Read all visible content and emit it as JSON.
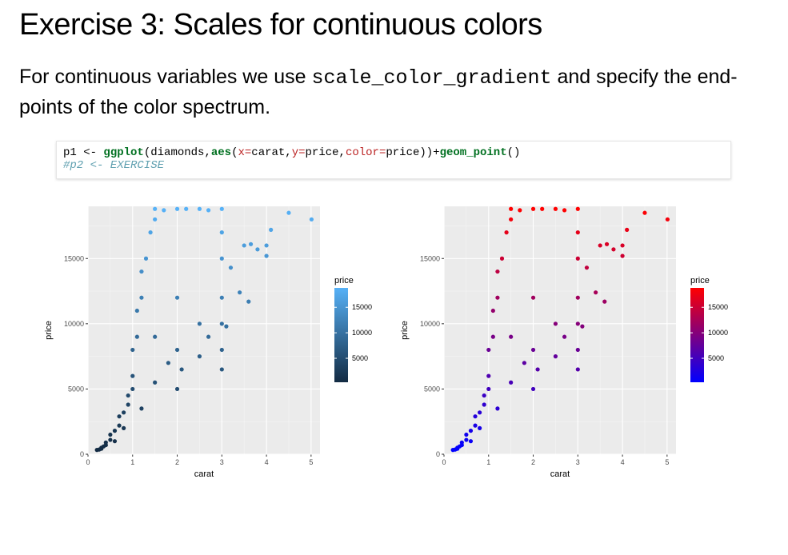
{
  "slide": {
    "title": "Exercise 3: Scales for continuous colors",
    "body_before": "For continuous variables we use ",
    "body_code": "scale_color_gradient",
    "body_after": " and specify the end-points of the color spectrum."
  },
  "code": {
    "line1": {
      "p1": "p1 <- ",
      "fn_ggplot": "ggplot",
      "open1": "(diamonds,",
      "fn_aes": "aes",
      "open2": "(",
      "arg_x": "x=",
      "val_x": "carat,",
      "arg_y": "y=",
      "val_y": "price,",
      "arg_color": "color=",
      "val_color": "price))+",
      "fn_geom": "geom_point",
      "close": "()"
    },
    "line2": "#p2 <- EXERCISE"
  },
  "chart_data": [
    {
      "type": "scatter",
      "xlabel": "carat",
      "ylabel": "price",
      "xlim": [
        0,
        5.2
      ],
      "ylim": [
        0,
        19000
      ],
      "xticks": [
        "0",
        "1",
        "2",
        "3",
        "4",
        "5"
      ],
      "yticks": [
        "0",
        "5000",
        "10000",
        "15000"
      ],
      "grid": true,
      "legend": {
        "title": "price",
        "labels": [
          "15000",
          "10000",
          "5000"
        ],
        "position": "right"
      },
      "color_low": "#132B43",
      "color_high": "#56B1F7",
      "panel_bg": "#EBEBEB",
      "points": [
        [
          0.2,
          330
        ],
        [
          0.25,
          360
        ],
        [
          0.3,
          420
        ],
        [
          0.3,
          500
        ],
        [
          0.35,
          600
        ],
        [
          0.4,
          700
        ],
        [
          0.4,
          900
        ],
        [
          0.5,
          1100
        ],
        [
          0.5,
          1500
        ],
        [
          0.6,
          1800
        ],
        [
          0.7,
          2200
        ],
        [
          0.7,
          2900
        ],
        [
          0.8,
          3200
        ],
        [
          0.9,
          3800
        ],
        [
          0.9,
          4500
        ],
        [
          1.0,
          5000
        ],
        [
          1.0,
          6000
        ],
        [
          1.0,
          8000
        ],
        [
          1.1,
          9000
        ],
        [
          1.1,
          11000
        ],
        [
          1.2,
          12000
        ],
        [
          1.2,
          14000
        ],
        [
          1.3,
          15000
        ],
        [
          1.4,
          17000
        ],
        [
          1.5,
          18000
        ],
        [
          1.5,
          18800
        ],
        [
          1.7,
          18700
        ],
        [
          2.0,
          18800
        ],
        [
          2.2,
          18800
        ],
        [
          2.5,
          18800
        ],
        [
          2.7,
          18700
        ],
        [
          3.0,
          18800
        ],
        [
          3.0,
          17000
        ],
        [
          3.0,
          15000
        ],
        [
          3.0,
          12000
        ],
        [
          3.0,
          10000
        ],
        [
          3.0,
          8000
        ],
        [
          3.0,
          6500
        ],
        [
          3.1,
          9800
        ],
        [
          3.2,
          14300
        ],
        [
          3.4,
          12400
        ],
        [
          3.5,
          16000
        ],
        [
          3.6,
          11700
        ],
        [
          3.65,
          16100
        ],
        [
          3.8,
          15700
        ],
        [
          4.0,
          15200
        ],
        [
          4.0,
          16000
        ],
        [
          4.1,
          17200
        ],
        [
          4.5,
          18500
        ],
        [
          5.01,
          18000
        ],
        [
          2.0,
          5000
        ],
        [
          2.0,
          8000
        ],
        [
          2.0,
          12000
        ],
        [
          2.1,
          6500
        ],
        [
          1.5,
          5500
        ],
        [
          1.5,
          9000
        ],
        [
          1.8,
          7000
        ],
        [
          2.5,
          7500
        ],
        [
          2.5,
          10000
        ],
        [
          2.7,
          9000
        ],
        [
          0.6,
          1000
        ],
        [
          0.8,
          2000
        ],
        [
          1.2,
          3500
        ]
      ]
    },
    {
      "type": "scatter",
      "xlabel": "carat",
      "ylabel": "price",
      "xlim": [
        0,
        5.2
      ],
      "ylim": [
        0,
        19000
      ],
      "xticks": [
        "0",
        "1",
        "2",
        "3",
        "4",
        "5"
      ],
      "yticks": [
        "0",
        "5000",
        "10000",
        "15000"
      ],
      "grid": true,
      "legend": {
        "title": "price",
        "labels": [
          "15000",
          "10000",
          "5000"
        ],
        "position": "right"
      },
      "color_low": "#0000FF",
      "color_high": "#FF0000",
      "panel_bg": "#EBEBEB",
      "points": [
        [
          0.2,
          330
        ],
        [
          0.25,
          360
        ],
        [
          0.3,
          420
        ],
        [
          0.3,
          500
        ],
        [
          0.35,
          600
        ],
        [
          0.4,
          700
        ],
        [
          0.4,
          900
        ],
        [
          0.5,
          1100
        ],
        [
          0.5,
          1500
        ],
        [
          0.6,
          1800
        ],
        [
          0.7,
          2200
        ],
        [
          0.7,
          2900
        ],
        [
          0.8,
          3200
        ],
        [
          0.9,
          3800
        ],
        [
          0.9,
          4500
        ],
        [
          1.0,
          5000
        ],
        [
          1.0,
          6000
        ],
        [
          1.0,
          8000
        ],
        [
          1.1,
          9000
        ],
        [
          1.1,
          11000
        ],
        [
          1.2,
          12000
        ],
        [
          1.2,
          14000
        ],
        [
          1.3,
          15000
        ],
        [
          1.4,
          17000
        ],
        [
          1.5,
          18000
        ],
        [
          1.5,
          18800
        ],
        [
          1.7,
          18700
        ],
        [
          2.0,
          18800
        ],
        [
          2.2,
          18800
        ],
        [
          2.5,
          18800
        ],
        [
          2.7,
          18700
        ],
        [
          3.0,
          18800
        ],
        [
          3.0,
          17000
        ],
        [
          3.0,
          15000
        ],
        [
          3.0,
          12000
        ],
        [
          3.0,
          10000
        ],
        [
          3.0,
          8000
        ],
        [
          3.0,
          6500
        ],
        [
          3.1,
          9800
        ],
        [
          3.2,
          14300
        ],
        [
          3.4,
          12400
        ],
        [
          3.5,
          16000
        ],
        [
          3.6,
          11700
        ],
        [
          3.65,
          16100
        ],
        [
          3.8,
          15700
        ],
        [
          4.0,
          15200
        ],
        [
          4.0,
          16000
        ],
        [
          4.1,
          17200
        ],
        [
          4.5,
          18500
        ],
        [
          5.01,
          18000
        ],
        [
          2.0,
          5000
        ],
        [
          2.0,
          8000
        ],
        [
          2.0,
          12000
        ],
        [
          2.1,
          6500
        ],
        [
          1.5,
          5500
        ],
        [
          1.5,
          9000
        ],
        [
          1.8,
          7000
        ],
        [
          2.5,
          7500
        ],
        [
          2.5,
          10000
        ],
        [
          2.7,
          9000
        ],
        [
          0.6,
          1000
        ],
        [
          0.8,
          2000
        ],
        [
          1.2,
          3500
        ]
      ]
    }
  ]
}
